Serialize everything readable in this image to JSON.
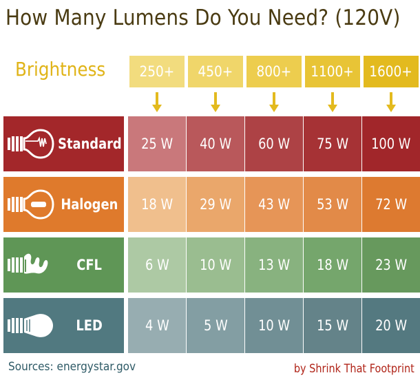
{
  "title": "How Many Lumens Do You Need? (120V)",
  "brightness_label": "Brightness",
  "lumen_colors": [
    "#f2dc7e",
    "#f0d66a",
    "#edcd4e",
    "#e8c436",
    "#e3ba1e"
  ],
  "rows": [
    {
      "label": "Standard",
      "icon": "incandescent-bulb-icon",
      "head_color": "#a3272a",
      "cell_colors": [
        "#c9787b",
        "#b9585b",
        "#ad4245",
        "#a63235",
        "#a1262a"
      ]
    },
    {
      "label": "Halogen",
      "icon": "halogen-bulb-icon",
      "head_color": "#df7a2c",
      "cell_colors": [
        "#f0bf8d",
        "#eaa76b",
        "#e69557",
        "#e28a48",
        "#dd7a30"
      ]
    },
    {
      "label": "CFL",
      "icon": "cfl-bulb-icon",
      "head_color": "#5f9656",
      "cell_colors": [
        "#adc9a4",
        "#9abd90",
        "#88b27f",
        "#75a66c",
        "#67995d"
      ]
    },
    {
      "label": "LED",
      "icon": "led-bulb-icon",
      "head_color": "#517980",
      "cell_colors": [
        "#97adb1",
        "#839ea3",
        "#718f95",
        "#648389",
        "#547980"
      ]
    }
  ],
  "chart_data": {
    "type": "table",
    "title": "How Many Lumens Do You Need? (120V)",
    "column_header_label": "Brightness",
    "columns": [
      "250+",
      "450+",
      "800+",
      "1100+",
      "1600+"
    ],
    "rows": [
      "Standard",
      "Halogen",
      "CFL",
      "LED"
    ],
    "cells": [
      [
        "25 W",
        "40 W",
        "60 W",
        "75 W",
        "100 W"
      ],
      [
        "18 W",
        "29 W",
        "43 W",
        "53 W",
        "72 W"
      ],
      [
        "6 W",
        "10 W",
        "13 W",
        "18 W",
        "23 W"
      ],
      [
        "4 W",
        "5 W",
        "10 W",
        "15 W",
        "20 W"
      ]
    ]
  },
  "footer": {
    "source": "Sources: energystar.gov",
    "credit": "by Shrink That Footprint"
  }
}
